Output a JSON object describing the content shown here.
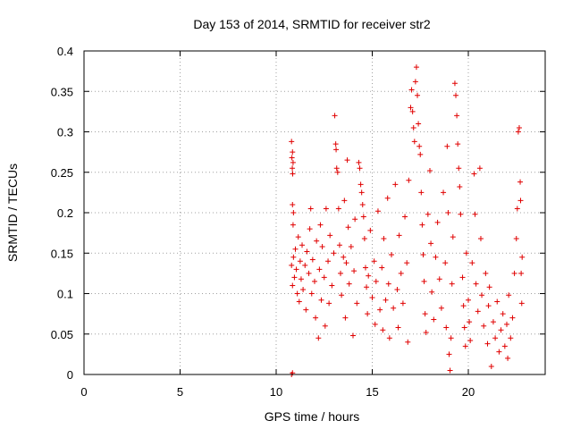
{
  "chart_data": {
    "type": "scatter",
    "title": "Day 153 of 2014, SRMTID for receiver str2",
    "xlabel": "GPS time / hours",
    "ylabel": "SRMTID / TECUs",
    "xlim": [
      0,
      24
    ],
    "ylim": [
      0,
      0.4
    ],
    "x_ticks": [
      0,
      5,
      10,
      15,
      20
    ],
    "y_ticks": [
      0,
      0.05,
      0.1,
      0.15,
      0.2,
      0.25,
      0.3,
      0.35,
      0.4
    ],
    "x_tick_labels": [
      "0",
      "5",
      "10",
      "15",
      "20"
    ],
    "y_tick_labels": [
      "0",
      "0.05",
      "0.1",
      "0.15",
      "0.2",
      "0.25",
      "0.3",
      "0.35",
      "0.4"
    ],
    "grid": true,
    "marker": "+",
    "color": "#e00000",
    "series": [
      {
        "points": [
          [
            10.8,
            0.0
          ],
          [
            10.85,
            0.002
          ],
          [
            10.8,
            0.288
          ],
          [
            10.85,
            0.275
          ],
          [
            10.82,
            0.268
          ],
          [
            10.88,
            0.262
          ],
          [
            10.84,
            0.255
          ],
          [
            10.86,
            0.248
          ],
          [
            10.85,
            0.21
          ],
          [
            10.9,
            0.2
          ],
          [
            10.88,
            0.185
          ],
          [
            10.8,
            0.135
          ],
          [
            10.9,
            0.145
          ],
          [
            10.95,
            0.12
          ],
          [
            10.85,
            0.11
          ],
          [
            11.0,
            0.155
          ],
          [
            11.05,
            0.13
          ],
          [
            11.1,
            0.1
          ],
          [
            11.15,
            0.17
          ],
          [
            11.2,
            0.09
          ],
          [
            11.25,
            0.14
          ],
          [
            11.3,
            0.118
          ],
          [
            11.35,
            0.16
          ],
          [
            11.4,
            0.105
          ],
          [
            11.5,
            0.135
          ],
          [
            11.55,
            0.08
          ],
          [
            11.6,
            0.152
          ],
          [
            11.7,
            0.125
          ],
          [
            11.75,
            0.18
          ],
          [
            11.8,
            0.205
          ],
          [
            11.85,
            0.1
          ],
          [
            11.9,
            0.142
          ],
          [
            12.0,
            0.115
          ],
          [
            12.05,
            0.07
          ],
          [
            12.1,
            0.165
          ],
          [
            12.2,
            0.045
          ],
          [
            12.25,
            0.13
          ],
          [
            12.3,
            0.185
          ],
          [
            12.35,
            0.092
          ],
          [
            12.4,
            0.158
          ],
          [
            12.5,
            0.12
          ],
          [
            12.55,
            0.06
          ],
          [
            12.6,
            0.205
          ],
          [
            12.7,
            0.14
          ],
          [
            12.75,
            0.088
          ],
          [
            12.8,
            0.172
          ],
          [
            12.9,
            0.11
          ],
          [
            13.0,
            0.15
          ],
          [
            13.05,
            0.32
          ],
          [
            13.1,
            0.285
          ],
          [
            13.12,
            0.278
          ],
          [
            13.15,
            0.255
          ],
          [
            13.2,
            0.25
          ],
          [
            13.25,
            0.205
          ],
          [
            13.3,
            0.16
          ],
          [
            13.35,
            0.125
          ],
          [
            13.4,
            0.098
          ],
          [
            13.5,
            0.145
          ],
          [
            13.55,
            0.215
          ],
          [
            13.6,
            0.07
          ],
          [
            13.65,
            0.138
          ],
          [
            13.7,
            0.265
          ],
          [
            13.75,
            0.182
          ],
          [
            13.8,
            0.112
          ],
          [
            13.9,
            0.158
          ],
          [
            14.0,
            0.048
          ],
          [
            14.05,
            0.128
          ],
          [
            14.1,
            0.192
          ],
          [
            14.2,
            0.088
          ],
          [
            14.3,
            0.262
          ],
          [
            14.35,
            0.255
          ],
          [
            14.4,
            0.235
          ],
          [
            14.45,
            0.225
          ],
          [
            14.5,
            0.21
          ],
          [
            14.55,
            0.195
          ],
          [
            14.6,
            0.168
          ],
          [
            14.65,
            0.132
          ],
          [
            14.7,
            0.108
          ],
          [
            14.75,
            0.075
          ],
          [
            14.8,
            0.122
          ],
          [
            14.9,
            0.178
          ],
          [
            15.0,
            0.095
          ],
          [
            15.1,
            0.14
          ],
          [
            15.15,
            0.062
          ],
          [
            15.2,
            0.115
          ],
          [
            15.3,
            0.202
          ],
          [
            15.4,
            0.08
          ],
          [
            15.5,
            0.132
          ],
          [
            15.55,
            0.055
          ],
          [
            15.6,
            0.168
          ],
          [
            15.7,
            0.092
          ],
          [
            15.8,
            0.218
          ],
          [
            15.85,
            0.112
          ],
          [
            15.9,
            0.045
          ],
          [
            16.0,
            0.148
          ],
          [
            16.1,
            0.082
          ],
          [
            16.2,
            0.235
          ],
          [
            16.3,
            0.105
          ],
          [
            16.35,
            0.058
          ],
          [
            16.4,
            0.172
          ],
          [
            16.5,
            0.125
          ],
          [
            16.6,
            0.088
          ],
          [
            16.7,
            0.195
          ],
          [
            16.8,
            0.138
          ],
          [
            16.85,
            0.04
          ],
          [
            16.9,
            0.24
          ],
          [
            17.0,
            0.33
          ],
          [
            17.05,
            0.352
          ],
          [
            17.1,
            0.325
          ],
          [
            17.15,
            0.305
          ],
          [
            17.2,
            0.288
          ],
          [
            17.25,
            0.362
          ],
          [
            17.3,
            0.38
          ],
          [
            17.35,
            0.345
          ],
          [
            17.4,
            0.31
          ],
          [
            17.45,
            0.282
          ],
          [
            17.5,
            0.272
          ],
          [
            17.55,
            0.225
          ],
          [
            17.6,
            0.185
          ],
          [
            17.65,
            0.148
          ],
          [
            17.7,
            0.115
          ],
          [
            17.75,
            0.075
          ],
          [
            17.8,
            0.052
          ],
          [
            17.9,
            0.198
          ],
          [
            18.0,
            0.252
          ],
          [
            18.05,
            0.162
          ],
          [
            18.1,
            0.102
          ],
          [
            18.2,
            0.068
          ],
          [
            18.3,
            0.145
          ],
          [
            18.4,
            0.188
          ],
          [
            18.5,
            0.118
          ],
          [
            18.6,
            0.082
          ],
          [
            18.7,
            0.225
          ],
          [
            18.8,
            0.138
          ],
          [
            18.85,
            0.058
          ],
          [
            18.9,
            0.282
          ],
          [
            18.95,
            0.2
          ],
          [
            19.0,
            0.025
          ],
          [
            19.05,
            0.005
          ],
          [
            19.1,
            0.045
          ],
          [
            19.15,
            0.112
          ],
          [
            19.2,
            0.17
          ],
          [
            19.3,
            0.36
          ],
          [
            19.35,
            0.345
          ],
          [
            19.4,
            0.32
          ],
          [
            19.45,
            0.285
          ],
          [
            19.5,
            0.255
          ],
          [
            19.55,
            0.232
          ],
          [
            19.6,
            0.198
          ],
          [
            19.7,
            0.12
          ],
          [
            19.75,
            0.085
          ],
          [
            19.8,
            0.058
          ],
          [
            19.85,
            0.035
          ],
          [
            19.9,
            0.15
          ],
          [
            20.0,
            0.092
          ],
          [
            20.05,
            0.065
          ],
          [
            20.1,
            0.042
          ],
          [
            20.2,
            0.138
          ],
          [
            20.3,
            0.248
          ],
          [
            20.35,
            0.198
          ],
          [
            20.4,
            0.112
          ],
          [
            20.5,
            0.078
          ],
          [
            20.6,
            0.255
          ],
          [
            20.65,
            0.168
          ],
          [
            20.7,
            0.098
          ],
          [
            20.8,
            0.06
          ],
          [
            20.9,
            0.125
          ],
          [
            21.0,
            0.038
          ],
          [
            21.05,
            0.085
          ],
          [
            21.1,
            0.108
          ],
          [
            21.2,
            0.01
          ],
          [
            21.3,
            0.065
          ],
          [
            21.4,
            0.045
          ],
          [
            21.5,
            0.09
          ],
          [
            21.6,
            0.028
          ],
          [
            21.7,
            0.055
          ],
          [
            21.8,
            0.075
          ],
          [
            21.9,
            0.035
          ],
          [
            22.0,
            0.062
          ],
          [
            22.05,
            0.02
          ],
          [
            22.1,
            0.098
          ],
          [
            22.2,
            0.045
          ],
          [
            22.3,
            0.07
          ],
          [
            22.4,
            0.125
          ],
          [
            22.5,
            0.168
          ],
          [
            22.55,
            0.205
          ],
          [
            22.6,
            0.3
          ],
          [
            22.65,
            0.305
          ],
          [
            22.7,
            0.238
          ],
          [
            22.72,
            0.215
          ],
          [
            22.75,
            0.125
          ],
          [
            22.78,
            0.088
          ],
          [
            22.8,
            0.145
          ]
        ]
      }
    ]
  }
}
